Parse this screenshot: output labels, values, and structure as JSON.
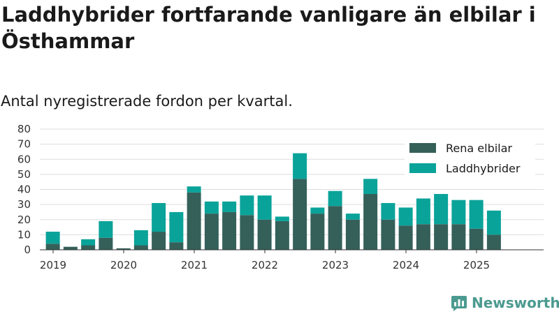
{
  "chart_data": {
    "type": "bar",
    "stacked": true,
    "title": "Laddhybrider fortfarande vanligare än elbilar i Östhammar",
    "subtitle": "Antal nyregistrerade fordon per kvartal.",
    "xlabel": "",
    "ylabel": "",
    "ylim": [
      0,
      80
    ],
    "yticks": [
      "0",
      "10",
      "20",
      "30",
      "40",
      "50",
      "60",
      "70",
      "80"
    ],
    "year_ticks": [
      "2019",
      "2020",
      "2021",
      "2022",
      "2023",
      "2024",
      "2025"
    ],
    "grid": true,
    "legend_position": "top-right",
    "categories": [
      "2019 Q1",
      "2019 Q2",
      "2019 Q3",
      "2019 Q4",
      "2020 Q1",
      "2020 Q2",
      "2020 Q3",
      "2020 Q4",
      "2021 Q1",
      "2021 Q2",
      "2021 Q3",
      "2021 Q4",
      "2022 Q1",
      "2022 Q2",
      "2022 Q3",
      "2022 Q4",
      "2023 Q1",
      "2023 Q2",
      "2023 Q3",
      "2023 Q4",
      "2024 Q1",
      "2024 Q2",
      "2024 Q3",
      "2024 Q4",
      "2025 Q1",
      "2025 Q2",
      "2025 Q3"
    ],
    "series": [
      {
        "name": "Rena elbilar",
        "color": "#35605a",
        "values": [
          4,
          2,
          3,
          8,
          1,
          3,
          12,
          5,
          38,
          24,
          25,
          23,
          20,
          19,
          47,
          24,
          29,
          20,
          37,
          20,
          16,
          17,
          17,
          17,
          14,
          10,
          0
        ]
      },
      {
        "name": "Laddhybrider",
        "color": "#0aa39a",
        "values": [
          8,
          0,
          4,
          11,
          0,
          10,
          19,
          20,
          4,
          8,
          7,
          13,
          16,
          3,
          17,
          4,
          10,
          4,
          10,
          11,
          12,
          17,
          20,
          16,
          19,
          16,
          0
        ]
      }
    ]
  },
  "brand": {
    "name": "Newsworthy",
    "color": "#4b9a8f"
  }
}
